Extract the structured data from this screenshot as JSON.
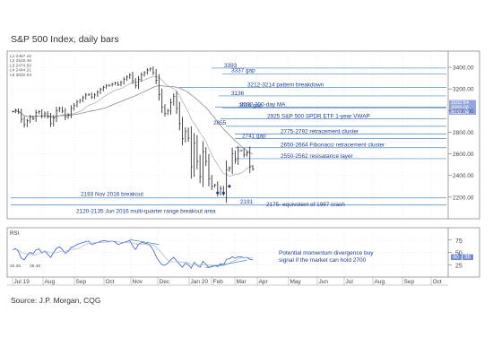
{
  "title": "S&P 500 Index, daily bars",
  "source": "Source: J.P. Morgan, CQG",
  "colors": {
    "bars": "#333333",
    "ref_line": "#2e75b6",
    "annotation_text": "#1f3e8f",
    "ma_line": "#9a9a9a",
    "rsi_line": "#3a5cc4",
    "price_badge": "#3a5cc4"
  },
  "chart_data": [
    {
      "type": "line",
      "name": "price",
      "description_none": "",
      "xlabel": "",
      "ylabel": "",
      "ylim": [
        2000,
        3550
      ],
      "x_ticks": [
        "Jul 19",
        "Aug",
        "Sep",
        "Oct",
        "Nov",
        "Dec",
        "Jan 20",
        "Feb",
        "Mar",
        "Apr",
        "May",
        "Jun",
        "Jul",
        "Aug",
        "Sep",
        "Oct"
      ],
      "y_ticks": [
        2200,
        2400,
        2600,
        2800,
        3000,
        3200,
        3400
      ],
      "legend_top_left": [
        "L1 2457.42",
        "L2 2520.46",
        "L3 2474.50",
        "L4 2444.21",
        "L5 3032.04"
      ],
      "right_value_labels": [
        "3102.64",
        "3069.68",
        "3032.04"
      ],
      "levels": [
        {
          "value": 3393,
          "label": "3393"
        },
        {
          "value": 3337,
          "label": "3337 gap"
        },
        {
          "value": 3213,
          "label": "3212-3214 pattern breakdown"
        },
        {
          "value": 3136,
          "label": "3136"
        },
        {
          "value": 3032,
          "label": "3032 200-day MA"
        },
        {
          "value": 3024,
          "label": "3024 gap"
        },
        {
          "value": 2925,
          "label": "2925 S&P 500 SPDR ETF 1-year VWAP"
        },
        {
          "value": 2855,
          "label": "2855"
        },
        {
          "value": 2783,
          "label": "2775-2792 retracement cluster"
        },
        {
          "value": 2741,
          "label": "2741 gap"
        },
        {
          "value": 2657,
          "label": "2650-2664 Fibonacci retracement cluster"
        },
        {
          "value": 2556,
          "label": "2550-2562 resisatance layer"
        },
        {
          "value": 2193,
          "label": "2193 Nov 2016 breakout"
        },
        {
          "value": 2191,
          "label": "2191"
        },
        {
          "value": 2175,
          "label": "2175- equivolent of 1987 crash"
        },
        {
          "value": 2127,
          "label": "2120-2135 Jun 2016 multi-quarter range breakout area"
        }
      ],
      "series": [
        {
          "values": [
            2990,
            3005,
            2985,
            2920,
            2870,
            2905,
            2940,
            2925,
            2980,
            2990,
            2950,
            2975,
            2945,
            2880,
            2930,
            3000,
            3020,
            2995,
            2940,
            2960,
            3020,
            3050,
            3080,
            3095,
            3120,
            3145,
            3150,
            3125,
            3145,
            3170,
            3195,
            3215,
            3230,
            3235,
            3245,
            3255,
            3240,
            3260,
            3290,
            3310,
            3330,
            3275,
            3230,
            3290,
            3330,
            3350,
            3375,
            3386,
            3350,
            3280,
            3150,
            3030,
            2975,
            3000,
            3075,
            3130,
            3020,
            2880,
            2740,
            2810,
            2745,
            2480,
            2700,
            2530,
            2390,
            2620,
            2530,
            2370,
            2300,
            2310,
            2240,
            2280,
            2237,
            2450,
            2470,
            2600,
            2540,
            2630,
            2630,
            2590,
            2610,
            2480,
            2460
          ]
        }
      ]
    },
    {
      "type": "line",
      "name": "RSI",
      "panel_label": "RSI",
      "ylim": [
        0,
        100
      ],
      "y_ticks": [
        25,
        50,
        75
      ],
      "current_values": [
        "40",
        "36"
      ],
      "annotation": "Potential momentum divergence buy signal if the market can hold 2700",
      "legend_values": [
        "40.36",
        "39.48"
      ],
      "series": [
        {
          "name": "RSI",
          "values": [
            55,
            58,
            52,
            38,
            35,
            44,
            50,
            47,
            55,
            57,
            49,
            53,
            46,
            40,
            50,
            58,
            61,
            56,
            48,
            52,
            60,
            62,
            66,
            68,
            70,
            72,
            73,
            66,
            68,
            70,
            72,
            74,
            73,
            72,
            73,
            71,
            66,
            68,
            70,
            72,
            74,
            63,
            56,
            66,
            70,
            69,
            68,
            64,
            55,
            42,
            32,
            25,
            24,
            28,
            35,
            40,
            33,
            26,
            20,
            28,
            25,
            18,
            30,
            24,
            20,
            32,
            26,
            19,
            22,
            24,
            21,
            27,
            25,
            36,
            37,
            41,
            38,
            41,
            41,
            39,
            40,
            36,
            35
          ]
        }
      ]
    }
  ]
}
